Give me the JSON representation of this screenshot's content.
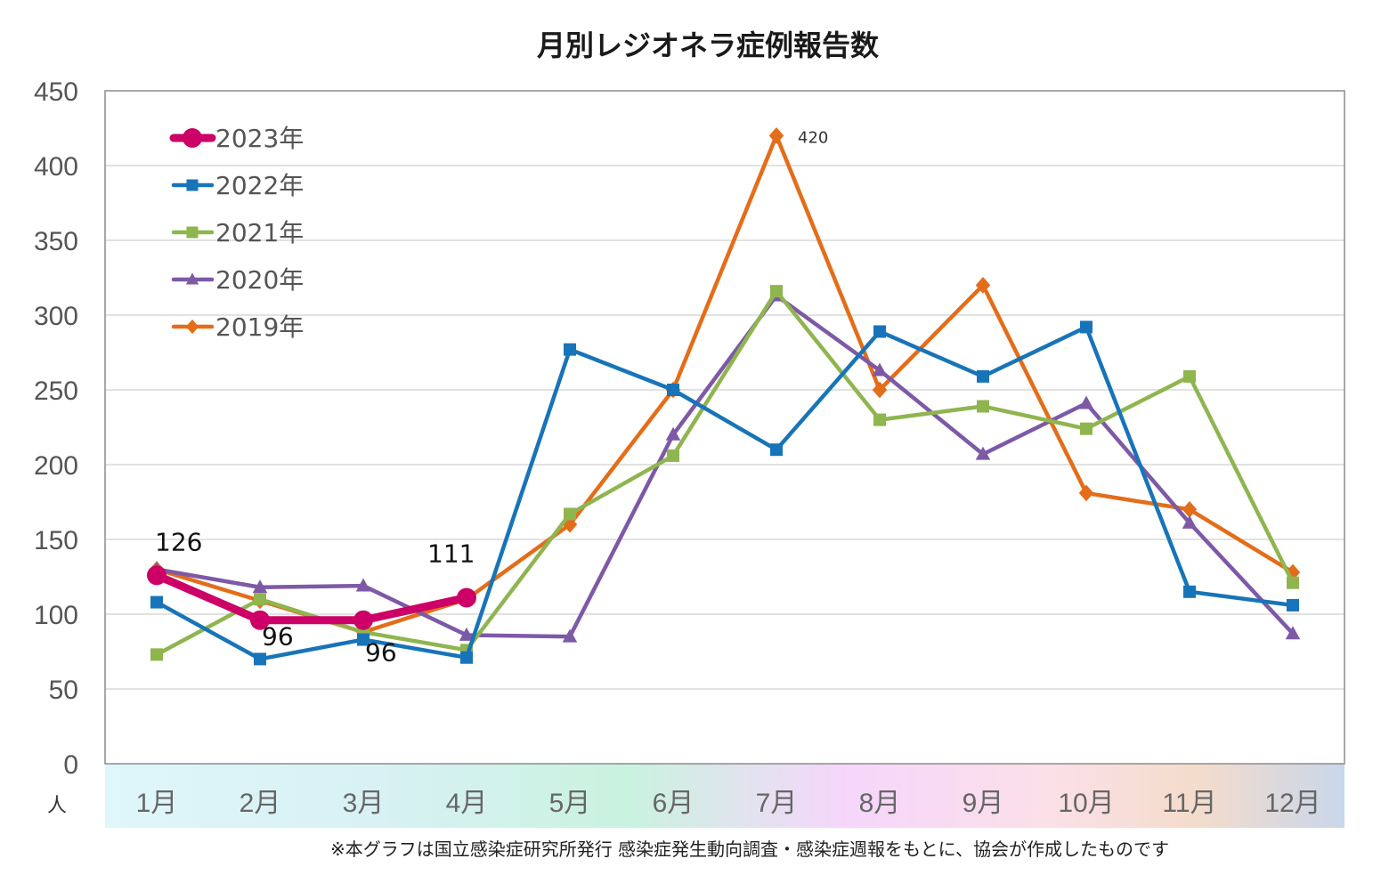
{
  "chart_data": {
    "type": "line",
    "title": "月別レジオネラ症例報告数",
    "unit_label": "人",
    "categories": [
      "1月",
      "2月",
      "3月",
      "4月",
      "5月",
      "6月",
      "7月",
      "8月",
      "9月",
      "10月",
      "11月",
      "12月"
    ],
    "ylim": [
      0,
      450
    ],
    "yticks": [
      0,
      50,
      100,
      150,
      200,
      250,
      300,
      350,
      400,
      450
    ],
    "grid": true,
    "legend_position": "top-left",
    "series": [
      {
        "name": "2023年",
        "color": "#cc0066",
        "marker": "circle",
        "values": [
          126,
          96,
          96,
          111,
          null,
          null,
          null,
          null,
          null,
          null,
          null,
          null
        ]
      },
      {
        "name": "2022年",
        "color": "#1874b8",
        "marker": "square",
        "values": [
          108,
          70,
          83,
          71,
          277,
          250,
          210,
          289,
          259,
          292,
          115,
          106
        ]
      },
      {
        "name": "2021年",
        "color": "#8fb54f",
        "marker": "square",
        "values": [
          73,
          110,
          88,
          76,
          167,
          206,
          316,
          230,
          239,
          224,
          259,
          121
        ]
      },
      {
        "name": "2020年",
        "color": "#7d59a6",
        "marker": "triangle",
        "values": [
          130,
          118,
          119,
          86,
          85,
          220,
          313,
          263,
          207,
          241,
          161,
          87
        ]
      },
      {
        "name": "2019年",
        "color": "#e46d19",
        "marker": "diamond",
        "values": [
          130,
          109,
          88,
          110,
          160,
          250,
          420,
          250,
          320,
          181,
          170,
          128
        ]
      }
    ],
    "annotations": [
      {
        "series": "2023年",
        "index": 0,
        "text": "126"
      },
      {
        "series": "2023年",
        "index": 1,
        "text": "96"
      },
      {
        "series": "2023年",
        "index": 2,
        "text": "96"
      },
      {
        "series": "2023年",
        "index": 3,
        "text": "111"
      },
      {
        "series": "2019年",
        "index": 6,
        "text": "420"
      }
    ],
    "footnote": "※本グラフは国立感染症研究所発行 感染症発生動向調査・感染症週報をもとに、協会が作成したものです"
  }
}
